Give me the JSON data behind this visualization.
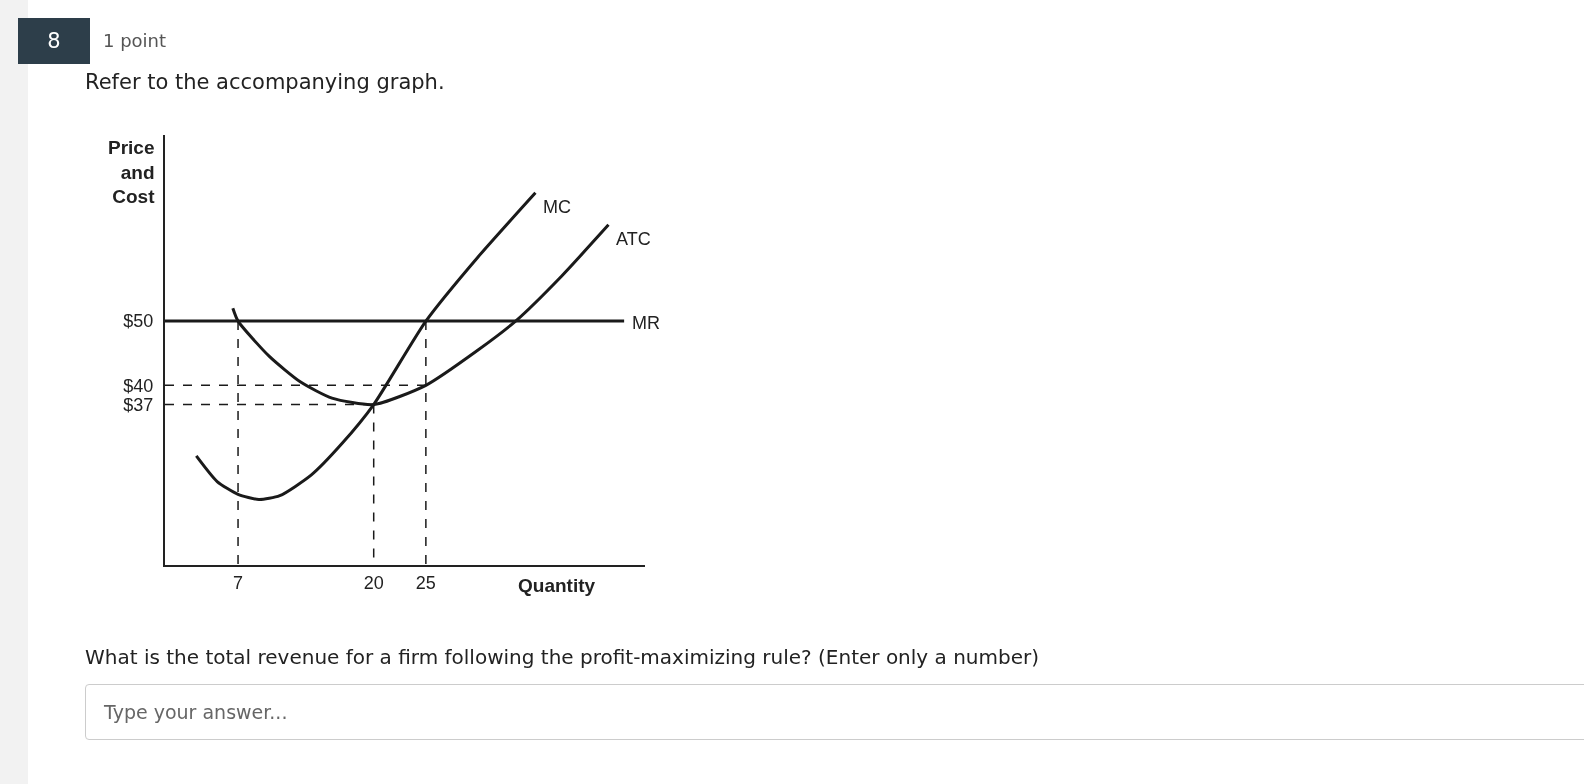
{
  "chart_data": {
    "type": "line",
    "title": "Refer to the accompanying graph.",
    "ylabel": "Price and Cost",
    "xlabel": "Quantity",
    "annotations": [
      "8",
      "1 point",
      "What is the total revenue for a firm following the profit-maximizing rule? (Enter only a number)",
      "Type your answer..."
    ],
    "xlim": [
      0,
      46
    ],
    "ylim": [
      12,
      79
    ],
    "xticks": [
      7,
      20,
      25
    ],
    "yticks": [
      {
        "value": 37,
        "label": "$37"
      },
      {
        "value": 40,
        "label": "$40"
      },
      {
        "value": 50,
        "label": "$50"
      }
    ],
    "series": [
      {
        "name": "MC",
        "color": "#1a1a1a",
        "line_style": "solid",
        "x": [
          3,
          5,
          7,
          9,
          11,
          14,
          17,
          20,
          25,
          30,
          35.5
        ],
        "values": [
          29,
          25,
          23,
          22.2,
          22.8,
          26,
          31,
          37,
          50,
          60,
          70
        ]
      },
      {
        "name": "ATC",
        "color": "#1a1a1a",
        "line_style": "solid",
        "x": [
          6.5,
          7,
          10,
          13,
          16,
          20,
          25,
          30,
          33.6,
          38,
          42.5
        ],
        "values": [
          52,
          50,
          44.5,
          40.5,
          38,
          37,
          40,
          45.5,
          50,
          57,
          65
        ]
      },
      {
        "name": "MR",
        "color": "#1a1a1a",
        "line_style": "solid",
        "x": [
          0,
          44
        ],
        "values": [
          50,
          50
        ]
      },
      {
        "color": "#1a1a1a",
        "line_style": "dashed",
        "x": [
          7,
          7
        ],
        "values": [
          50,
          12
        ]
      },
      {
        "color": "#1a1a1a",
        "line_style": "dashed",
        "x": [
          20,
          20
        ],
        "values": [
          37,
          12
        ]
      },
      {
        "color": "#1a1a1a",
        "line_style": "dashed",
        "x": [
          25,
          25
        ],
        "values": [
          50,
          12
        ]
      },
      {
        "color": "#1a1a1a",
        "line_style": "dashed",
        "x": [
          0,
          25
        ],
        "values": [
          40,
          40
        ]
      },
      {
        "color": "#1a1a1a",
        "line_style": "dashed",
        "x": [
          0,
          20
        ],
        "values": [
          37,
          37
        ]
      }
    ]
  }
}
